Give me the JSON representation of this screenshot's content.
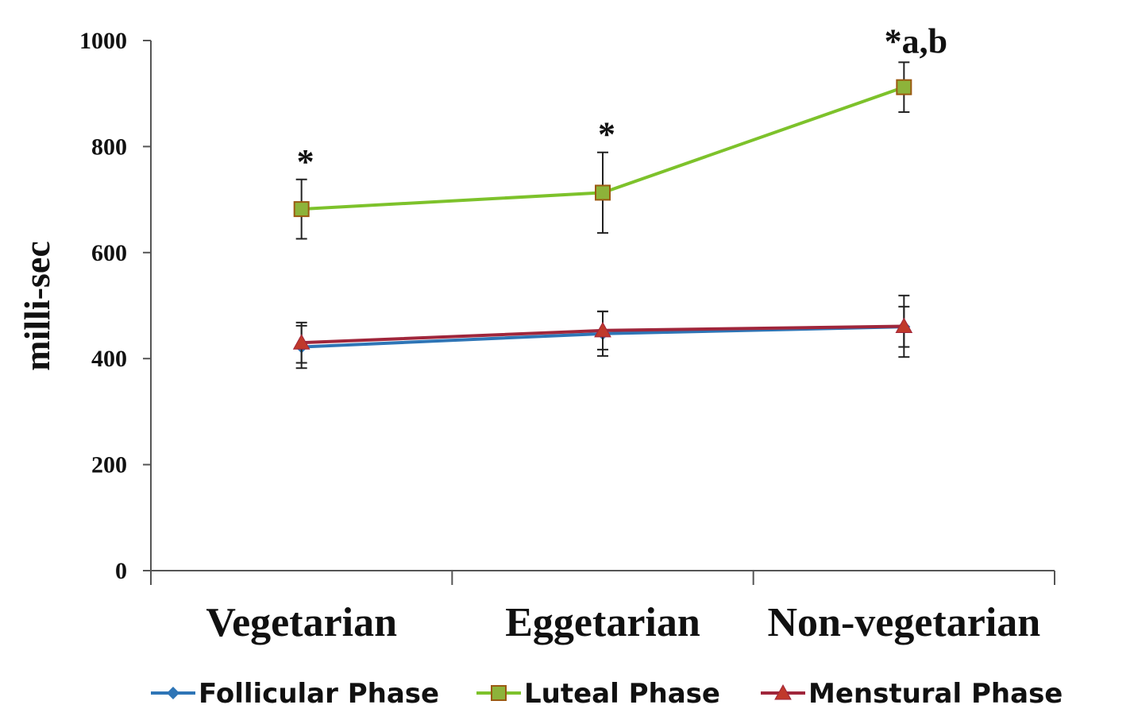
{
  "chart_data": {
    "type": "line",
    "title": "",
    "xlabel": "",
    "ylabel": "milli-sec",
    "ylim": [
      0,
      1000
    ],
    "yticks": [
      0,
      200,
      400,
      600,
      800,
      1000
    ],
    "categories": [
      "Vegetarian",
      "Eggetarian",
      "Non-vegetarian"
    ],
    "series": [
      {
        "name": "Follicular Phase",
        "color": "#2e75b6",
        "marker": "diamond",
        "values": [
          422,
          447,
          460
        ],
        "errors": [
          40,
          42,
          38
        ]
      },
      {
        "name": "Luteal Phase",
        "color": "#7dc22b",
        "marker_fill": "#8db33a",
        "marker_stroke": "#9b5a12",
        "marker": "square",
        "values": [
          682,
          713,
          912
        ],
        "errors": [
          56,
          76,
          47
        ]
      },
      {
        "name": "Menstural Phase",
        "color": "#a0263b",
        "marker_fill": "#c0392b",
        "marker": "triangle",
        "values": [
          430,
          453,
          461
        ],
        "errors": [
          38,
          36,
          58
        ]
      }
    ],
    "annotations": [
      {
        "category": "Vegetarian",
        "text": "*"
      },
      {
        "category": "Eggetarian",
        "text": "*"
      },
      {
        "category": "Non-vegetarian",
        "text": "*a,b"
      }
    ],
    "legend_position": "bottom"
  }
}
